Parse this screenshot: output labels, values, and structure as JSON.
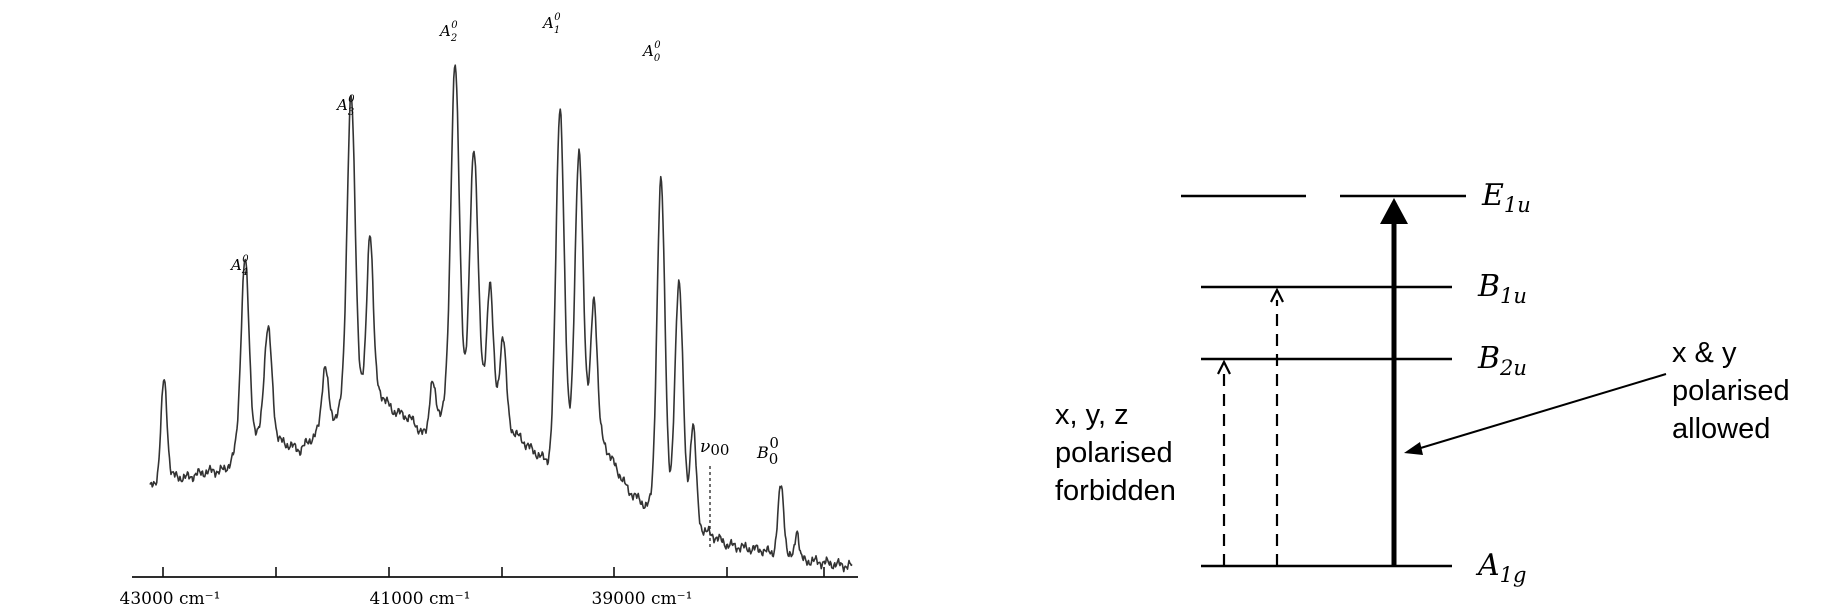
{
  "spectrum": {
    "axis_labels": [
      "43000 cm⁻¹",
      "41000 cm⁻¹",
      "39000 cm⁻¹"
    ],
    "peak_labels": {
      "a4": {
        "base": "A",
        "sub": "4",
        "sup": "0"
      },
      "a3": {
        "base": "A",
        "sub": "3",
        "sup": "0"
      },
      "a2": {
        "base": "A",
        "sub": "2",
        "sup": "0"
      },
      "a1": {
        "base": "A",
        "sub": "1",
        "sup": "0"
      },
      "a0": {
        "base": "A",
        "sub": "0",
        "sup": "0"
      },
      "nu00": {
        "base": "ν",
        "sub": "00"
      },
      "b0": {
        "base": "B",
        "sub": "0",
        "sup": "0"
      }
    }
  },
  "energy_diagram": {
    "levels": [
      {
        "base": "E",
        "sub": "1u"
      },
      {
        "base": "B",
        "sub": "1u"
      },
      {
        "base": "B",
        "sub": "2u"
      },
      {
        "base": "A",
        "sub": "1g"
      }
    ],
    "annotation_forbidden": [
      "x, y, z",
      "polarised",
      "forbidden"
    ],
    "annotation_allowed": [
      "x & y",
      "polarised",
      "allowed"
    ]
  }
}
